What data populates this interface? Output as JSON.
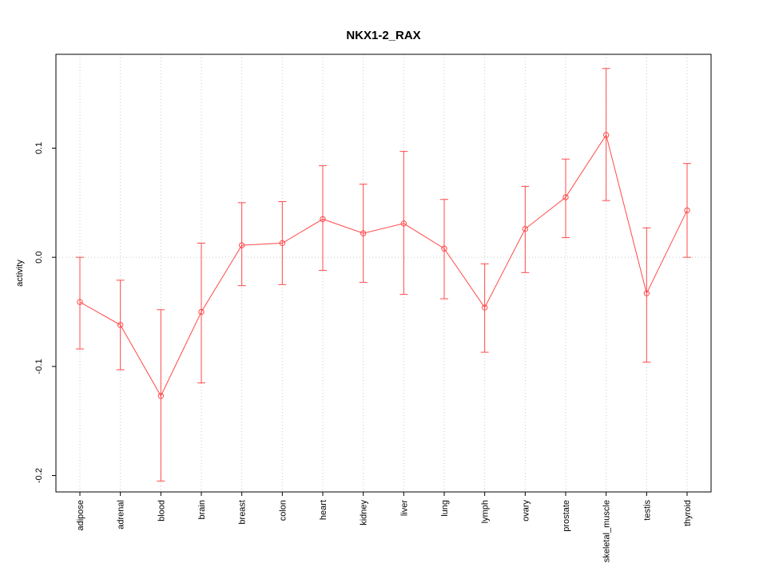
{
  "page": {
    "background": "#ffffff"
  },
  "chart_data": {
    "type": "line",
    "title": "NKX1-2_RAX",
    "xlabel": "",
    "ylabel": "activity",
    "categories": [
      "adipose",
      "adrenal",
      "blood",
      "brain",
      "breast",
      "colon",
      "heart",
      "kidney",
      "liver",
      "lung",
      "lymph",
      "ovary",
      "prostate",
      "skeletal_muscle",
      "testis",
      "thyroid"
    ],
    "series": [
      {
        "name": "activity",
        "values": [
          -0.041,
          -0.062,
          -0.127,
          -0.05,
          0.011,
          0.013,
          0.035,
          0.022,
          0.031,
          0.008,
          -0.046,
          0.026,
          0.055,
          0.112,
          -0.033,
          0.043
        ],
        "error_low": [
          -0.084,
          -0.103,
          -0.205,
          -0.115,
          -0.026,
          -0.025,
          -0.012,
          -0.023,
          -0.034,
          -0.038,
          -0.087,
          -0.014,
          0.018,
          0.052,
          -0.096,
          0.0
        ],
        "error_high": [
          0.0,
          -0.021,
          -0.048,
          0.013,
          0.05,
          0.051,
          0.084,
          0.067,
          0.097,
          0.053,
          -0.006,
          0.065,
          0.09,
          0.173,
          0.027,
          0.086
        ]
      }
    ],
    "ylim": [
      -0.215,
      0.186
    ],
    "yticks": [
      -0.2,
      -0.1,
      0.0,
      0.1
    ],
    "ytick_labels": [
      "-0.2",
      "-0.1",
      "0.0",
      "0.1"
    ],
    "grid": "dotted vertical line per category, dotted horizontal line at 0",
    "legend": "none",
    "marker": "open-circle",
    "colors": {
      "series": "#ff4a4a",
      "grid": "#c9c9c9",
      "box": "#000000",
      "text": "#000000"
    }
  }
}
